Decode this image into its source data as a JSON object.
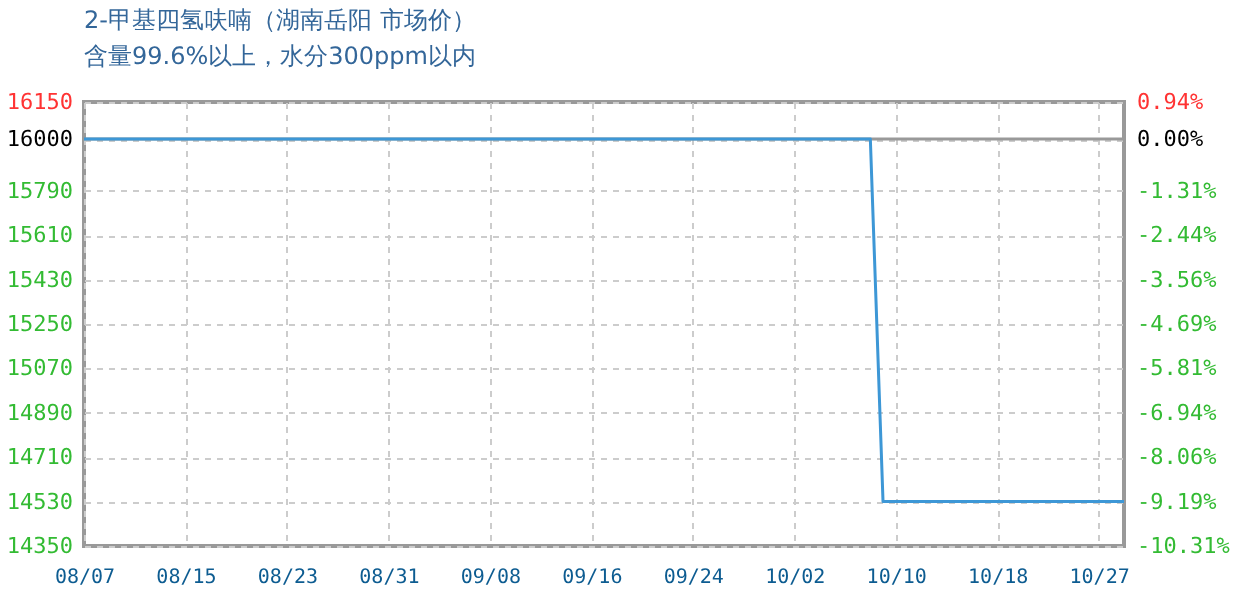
{
  "chart_data": {
    "type": "line",
    "title": "2-甲基四氢呋喃（湖南岳阳 市场价）",
    "subtitle": "含量99.6%以上，水分300ppm以内",
    "x": [
      "--08-07",
      "--10-08",
      "--10-09",
      "--10-28"
    ],
    "series": [
      {
        "color": "#3d97d6",
        "values": [
          16000,
          16000,
          14530,
          14530
        ]
      }
    ],
    "xlim": [
      "--08-07",
      "--10-28"
    ],
    "xticks": [
      {
        "value": "--08-07",
        "label": "08/07"
      },
      {
        "value": "--08-15",
        "label": "08/15"
      },
      {
        "value": "--08-23",
        "label": "08/23"
      },
      {
        "value": "--08-31",
        "label": "08/31"
      },
      {
        "value": "--09-08",
        "label": "09/08"
      },
      {
        "value": "--09-16",
        "label": "09/16"
      },
      {
        "value": "--09-24",
        "label": "09/24"
      },
      {
        "value": "--10-02",
        "label": "10/02"
      },
      {
        "value": "--10-10",
        "label": "10/10"
      },
      {
        "value": "--10-18",
        "label": "10/18"
      },
      {
        "value": "--10-26",
        "label": "10/27"
      }
    ],
    "ylim": [
      14350,
      16150
    ],
    "yticks": [
      16150,
      16000,
      15790,
      15610,
      15430,
      15250,
      15070,
      14890,
      14710,
      14530,
      14350
    ],
    "y2lim": [
      -10.31,
      0.94
    ],
    "y2ticks": [
      {
        "value": 0.94,
        "label": "0.94%"
      },
      {
        "value": 0,
        "label": "0.00%"
      },
      {
        "value": -1.31,
        "label": "-1.31%"
      },
      {
        "value": -2.44,
        "label": "-2.44%"
      },
      {
        "value": -3.56,
        "label": "-3.56%"
      },
      {
        "value": -4.69,
        "label": "-4.69%"
      },
      {
        "value": -5.81,
        "label": "-5.81%"
      },
      {
        "value": -6.94,
        "label": "-6.94%"
      },
      {
        "value": -8.06,
        "label": "-8.06%"
      },
      {
        "value": -9.19,
        "label": "-9.19%"
      },
      {
        "value": -10.31,
        "label": "-10.31%"
      }
    ],
    "ref_lines": [
      {
        "axis": "y",
        "value": 16000,
        "color": "#999999"
      }
    ],
    "grid": true,
    "marker": "none",
    "line_style": "solid"
  }
}
